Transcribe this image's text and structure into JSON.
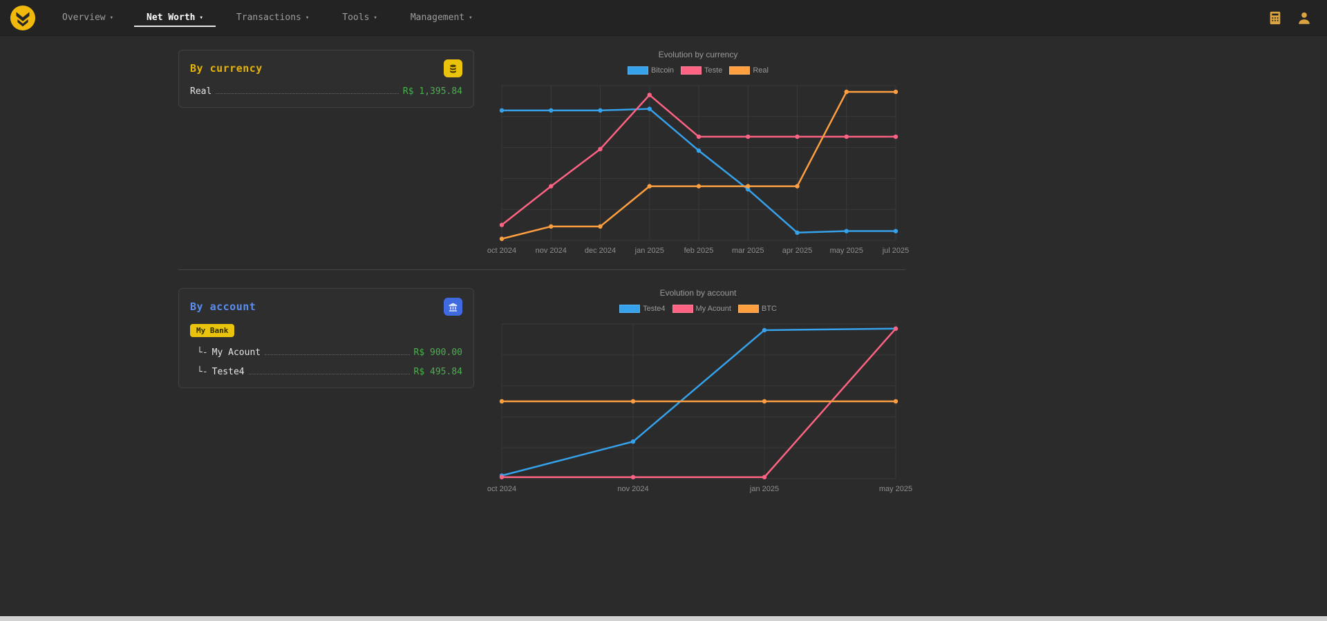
{
  "colors": {
    "accent_yellow": "#e9c30c",
    "accent_blue": "#3f6ae0",
    "title_yellow": "#e3b30b",
    "title_blue": "#5a8df0",
    "value_green": "#4caf50",
    "line_blue": "#36a2eb",
    "line_pink": "#ff6384",
    "line_orange": "#ff9f40"
  },
  "icons": {
    "caret": "▾"
  },
  "nav": {
    "items": [
      {
        "label": "Overview"
      },
      {
        "label": "Net Worth"
      },
      {
        "label": "Transactions"
      },
      {
        "label": "Tools"
      },
      {
        "label": "Management"
      }
    ]
  },
  "cards": {
    "currency": {
      "title": "By currency",
      "rows": [
        {
          "label": "Real",
          "value": "R$ 1,395.84"
        }
      ]
    },
    "account": {
      "title": "By account",
      "badge": "My Bank",
      "rows": [
        {
          "prefix": "└-",
          "label": "My Acount",
          "value": "R$ 900.00"
        },
        {
          "prefix": "└-",
          "label": "Teste4",
          "value": "R$ 495.84"
        }
      ]
    }
  },
  "chart_data": [
    {
      "type": "line",
      "title": "Evolution by currency",
      "x": [
        "oct 2024",
        "nov 2024",
        "dec 2024",
        "jan 2025",
        "feb 2025",
        "mar 2025",
        "apr 2025",
        "may 2025",
        "jul 2025"
      ],
      "series": [
        {
          "name": "Bitcoin",
          "color": "#36a2eb",
          "values": [
            84,
            84,
            84,
            85,
            58,
            33,
            5,
            6,
            6
          ]
        },
        {
          "name": "Teste",
          "color": "#ff6384",
          "values": [
            10,
            35,
            59,
            94,
            67,
            67,
            67,
            67,
            67
          ]
        },
        {
          "name": "Real",
          "color": "#ff9f40",
          "values": [
            1,
            9,
            9,
            35,
            35,
            35,
            35,
            96,
            96
          ]
        }
      ],
      "ylim": [
        0,
        100
      ],
      "grid": true,
      "legend_position": "top",
      "note": "y axis unlabeled; values estimated 0-100 relative scale"
    },
    {
      "type": "line",
      "title": "Evolution by account",
      "x": [
        "oct 2024",
        "nov 2024",
        "jan 2025",
        "may 2025"
      ],
      "series": [
        {
          "name": "Teste4",
          "color": "#36a2eb",
          "values": [
            2,
            24,
            96,
            97
          ]
        },
        {
          "name": "My Acount",
          "color": "#ff6384",
          "values": [
            1,
            1,
            1,
            97
          ]
        },
        {
          "name": "BTC",
          "color": "#ff9f40",
          "values": [
            50,
            50,
            50,
            50
          ]
        }
      ],
      "ylim": [
        0,
        100
      ],
      "grid": true,
      "legend_position": "top",
      "note": "y axis unlabeled; values estimated 0-100 relative scale"
    }
  ]
}
